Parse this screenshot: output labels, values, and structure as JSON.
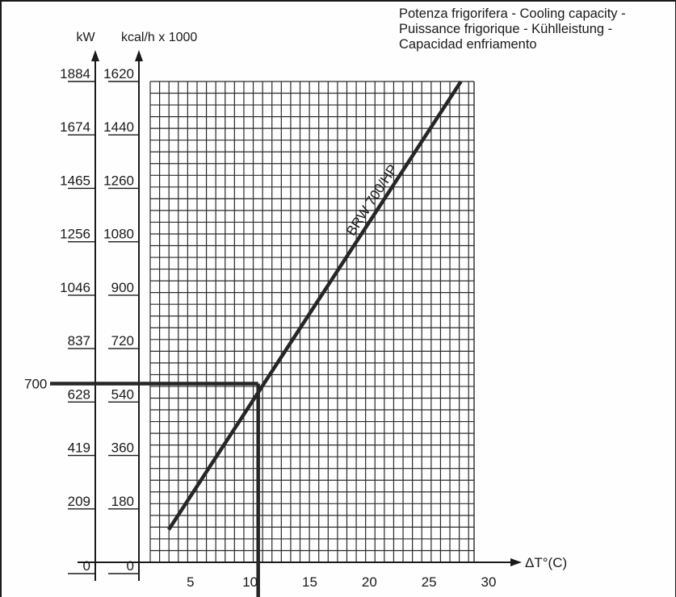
{
  "chart_data": {
    "type": "line",
    "title_lines": [
      "Potenza frigorifera - Cooling capacity -",
      "Puissance frigorique - Kühlleistung -",
      "Capacidad enfriamento"
    ],
    "xlabel": "ΔT°(C)",
    "ylabel_left": "kW",
    "ylabel_right": "kcal/h x 1000",
    "xlim": [
      0,
      30
    ],
    "ylim_kcal": [
      0,
      1620
    ],
    "x_ticks": [
      "5",
      "10",
      "15",
      "20",
      "25",
      "30"
    ],
    "kw_ticks": [
      "0",
      "209",
      "419",
      "628",
      "837",
      "1046",
      "1256",
      "1465",
      "1674",
      "1884"
    ],
    "kcal_ticks": [
      "0",
      "180",
      "360",
      "540",
      "720",
      "900",
      "1080",
      "1260",
      "1440",
      "1620"
    ],
    "grid": true,
    "series": [
      {
        "name": "BRW 700/HP",
        "x": [
          2.5,
          27
        ],
        "y_kcal": [
          110,
          1620
        ]
      }
    ],
    "annotation": {
      "label": "700",
      "x": 10,
      "y_kw": 700
    }
  },
  "colors": {
    "line": "#262626",
    "grid": "#2a2a2a",
    "text": "#1a1a1a"
  }
}
